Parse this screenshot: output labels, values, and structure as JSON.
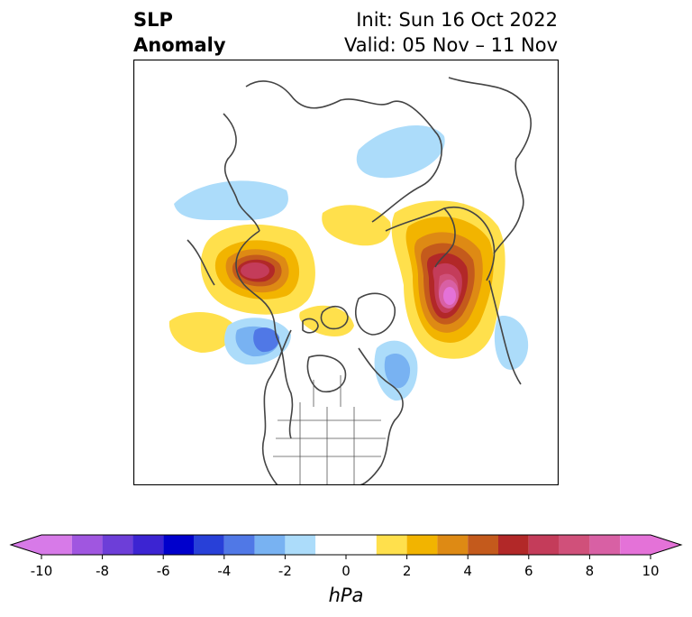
{
  "title": {
    "left_line1": "SLP",
    "left_line2": "Anomaly",
    "right_line1": "Init: Sun 16 Oct 2022",
    "right_line2": "Valid: 05 Nov – 11 Nov"
  },
  "map": {
    "projection": "north-polar-stereographic",
    "region": "Northern Hemisphere"
  },
  "colorbar": {
    "unit_label": "hPa",
    "extend": "both",
    "levels": [
      -10,
      -9,
      -8,
      -7,
      -6,
      -5,
      -4,
      -3,
      -2,
      -1,
      1,
      2,
      3,
      4,
      5,
      6,
      7,
      8,
      9,
      10
    ],
    "tick_labels": [
      "-10",
      "-8",
      "-6",
      "-4",
      "-2",
      "0",
      "2",
      "4",
      "6",
      "8",
      "10"
    ],
    "tick_values": [
      -10,
      -8,
      -6,
      -4,
      -2,
      0,
      2,
      4,
      6,
      8,
      10
    ],
    "colors": [
      "#d77ae8",
      "#a056e0",
      "#6d3ed8",
      "#3c24d2",
      "#0000cc",
      "#2840d8",
      "#5078e6",
      "#78b2f2",
      "#acdcfa",
      "#ffffff",
      "#ffe04c",
      "#f2b400",
      "#de8a14",
      "#c45a1c",
      "#b22828",
      "#c43c5a",
      "#d0507a",
      "#d860a4",
      "#e472d8"
    ],
    "under_color": "#d77ae8",
    "over_color": "#e472d8"
  }
}
